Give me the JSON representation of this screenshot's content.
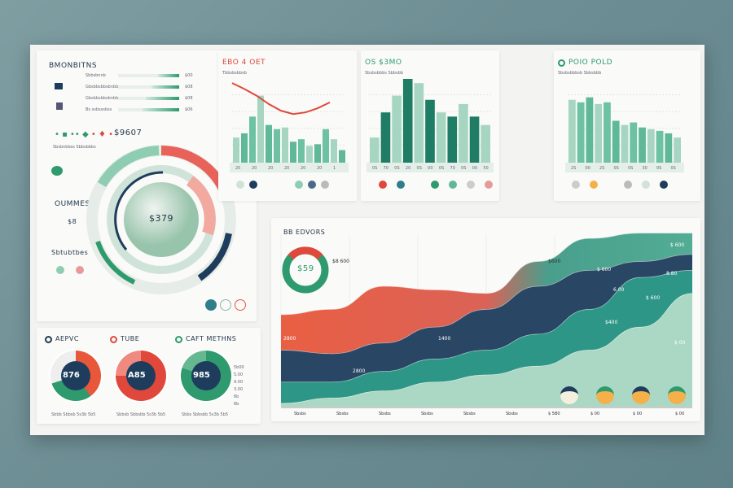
{
  "left_panel": {
    "title": "BMONBITNS",
    "progress_rows": [
      {
        "label": "Sbbsbnnb",
        "value": "$00",
        "fill": 0.35
      },
      {
        "label": "Gbsbbsbbsbnbbn",
        "value": "$08",
        "fill": 0.45
      },
      {
        "label": "Gbsbbsbbsbnbbn",
        "value": "$08",
        "fill": 0.55
      },
      {
        "label": "Bs ssbsssbss",
        "value": "$06",
        "fill": 0.6
      }
    ],
    "amount": "$9607",
    "amount_caption": "Sbsbnbbss Sbbsbbbs",
    "section2": "OUMMES",
    "section2_value": "$8",
    "section3": "Sbtubtbes",
    "ring_value": "$379"
  },
  "gauges": [
    {
      "title": "AEPVC",
      "value": "876",
      "caption": "Sbbb Sbbsb 5s3b 5b5",
      "color": "#1f3b4d"
    },
    {
      "title": "TUBE",
      "value": "A85",
      "caption": "Sbbsb Sbbsbb 5s3b 5b5",
      "color": "#e0483c"
    },
    {
      "title": "CAFT METHNS",
      "value": "985",
      "caption": "Sbbs Sbbsbb 5s3b 5b5",
      "color": "#2e9a6e"
    }
  ],
  "gauge_side_values": [
    "5b00",
    "5.00",
    "9.00",
    "3.00",
    "6b",
    "6b"
  ],
  "top_charts": [
    {
      "title": "EBO 4 OET",
      "subtitle": "Tbbsbsbbsb",
      "accent": "#e0483c"
    },
    {
      "title": "OS $3MO",
      "subtitle": "Sbsbsbbbs Sbbsbb",
      "accent": "#2e9a6e"
    },
    {
      "title": "POIO POLD",
      "subtitle": "Sbsbsbbbsb Sbbsbbb",
      "accent": "#2e9a6e"
    }
  ],
  "stream": {
    "title": "BB EDVORS",
    "donut_value": "$59",
    "labels": [
      "$8 600",
      "$600",
      "$ 600",
      "2800",
      "1400",
      "2800",
      "$ 600",
      "$400",
      "6.00",
      "$ 600",
      "8.80",
      "$ 00"
    ],
    "x_ticks": [
      "Sbsbs",
      "Sbsbs",
      "Sbsbs",
      "Sbsbs",
      "Sbsbs",
      "Sbsbs",
      "$ 5B0",
      "$ 00",
      "$ 00",
      "$ 00"
    ]
  },
  "chart_data": [
    {
      "type": "bar",
      "title": "EBO 4 OET",
      "x_ticks": [
        "20",
        "20",
        "20",
        "20",
        "20",
        "20",
        "1"
      ],
      "ylim": [
        0,
        100
      ],
      "values": [
        30,
        35,
        55,
        80,
        45,
        40,
        42,
        25,
        28,
        20,
        22,
        40,
        28,
        15
      ],
      "line": [
        95,
        88,
        80,
        70,
        62,
        58,
        60,
        65,
        72
      ]
    },
    {
      "type": "bar",
      "title": "OS $3MO",
      "x_ticks": [
        "0S",
        "70",
        "0S",
        "20",
        "0S",
        "00",
        "0S",
        "70",
        "0S",
        "00",
        "50"
      ],
      "ylim": [
        0,
        100
      ],
      "values": [
        30,
        60,
        80,
        100,
        95,
        75,
        60,
        55,
        70,
        55,
        45
      ]
    },
    {
      "type": "bar",
      "title": "POIO POLD",
      "x_ticks": [
        "2S",
        "00",
        "2S",
        "0S",
        "0S",
        "30",
        "0S",
        "0S"
      ],
      "ylim": [
        0,
        100
      ],
      "values": [
        75,
        72,
        78,
        70,
        72,
        50,
        45,
        48,
        42,
        40,
        38,
        35,
        30
      ]
    },
    {
      "type": "area",
      "title": "BB EDVORS",
      "ylim": [
        0,
        100
      ],
      "series": [
        {
          "values": [
            2,
            5,
            9,
            14,
            18,
            23,
            32,
            45,
            64
          ],
          "color": "#a6d6c1"
        },
        {
          "values": [
            12,
            9,
            11,
            13,
            14,
            18,
            23,
            28,
            13
          ],
          "color": "#23907f"
        },
        {
          "values": [
            18,
            16,
            16,
            18,
            23,
            27,
            22,
            9,
            9
          ],
          "color": "#1e3d5c"
        },
        {
          "values": [
            20,
            25,
            32,
            21,
            9,
            14,
            18,
            16,
            12
          ],
          "color": "#e8573a"
        }
      ]
    }
  ],
  "colors": {
    "navy": "#1e3d5c",
    "teal": "#23907f",
    "mint": "#8fcdb2",
    "red": "#e0483c",
    "orange": "#f08a3a"
  }
}
